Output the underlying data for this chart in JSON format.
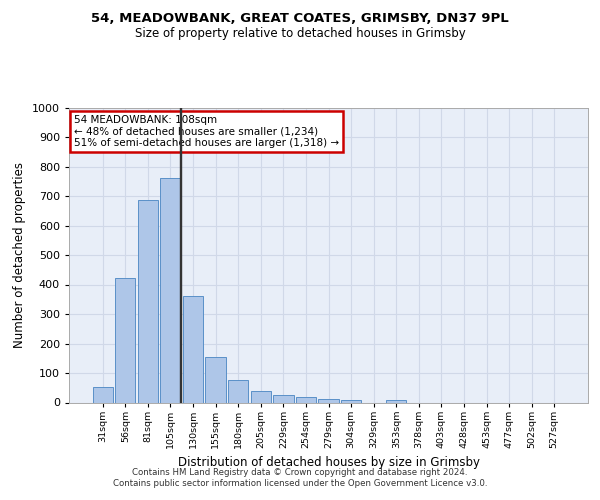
{
  "title_line1": "54, MEADOWBANK, GREAT COATES, GRIMSBY, DN37 9PL",
  "title_line2": "Size of property relative to detached houses in Grimsby",
  "xlabel": "Distribution of detached houses by size in Grimsby",
  "ylabel": "Number of detached properties",
  "footer_line1": "Contains HM Land Registry data © Crown copyright and database right 2024.",
  "footer_line2": "Contains public sector information licensed under the Open Government Licence v3.0.",
  "bar_labels": [
    "31sqm",
    "56sqm",
    "81sqm",
    "105sqm",
    "130sqm",
    "155sqm",
    "180sqm",
    "205sqm",
    "229sqm",
    "254sqm",
    "279sqm",
    "304sqm",
    "329sqm",
    "353sqm",
    "378sqm",
    "403sqm",
    "428sqm",
    "453sqm",
    "477sqm",
    "502sqm",
    "527sqm"
  ],
  "bar_values": [
    52,
    422,
    685,
    760,
    362,
    153,
    75,
    40,
    27,
    18,
    12,
    9,
    0,
    10,
    0,
    0,
    0,
    0,
    0,
    0,
    0
  ],
  "bar_color": "#aec6e8",
  "bar_edgecolor": "#5a90c8",
  "ylim": [
    0,
    1000
  ],
  "yticks": [
    0,
    100,
    200,
    300,
    400,
    500,
    600,
    700,
    800,
    900,
    1000
  ],
  "property_bin_index": 3,
  "vline_color": "#333333",
  "annotation_text_line1": "54 MEADOWBANK: 108sqm",
  "annotation_text_line2": "← 48% of detached houses are smaller (1,234)",
  "annotation_text_line3": "51% of semi-detached houses are larger (1,318) →",
  "annotation_box_color": "#cc0000",
  "grid_color": "#d0d8e8",
  "background_color": "#e8eef8"
}
